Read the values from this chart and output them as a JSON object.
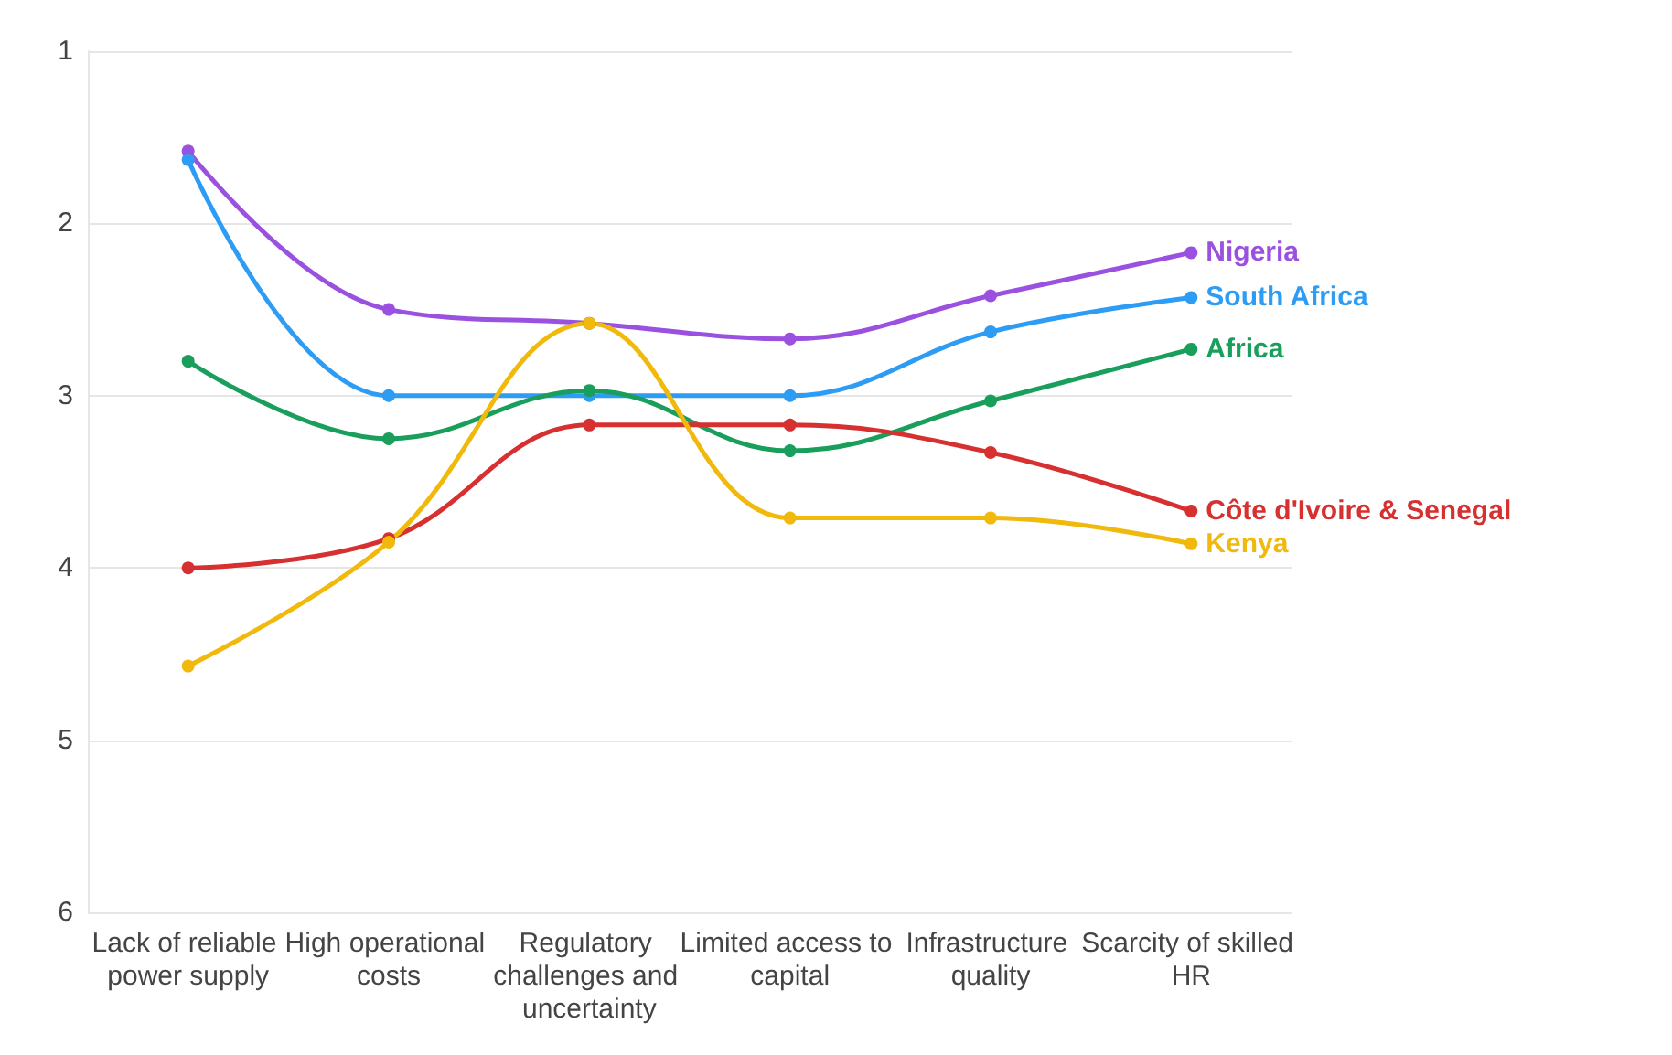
{
  "chart_data": {
    "type": "line",
    "categories": [
      "Lack of reliable power supply",
      "High operational costs",
      "Regulatory challenges and uncertainty",
      "Limited access to capital",
      "Infrastructure quality",
      "Scarcity of skilled HR"
    ],
    "series": [
      {
        "name": "Nigeria",
        "color": "#9b51e0",
        "values": [
          1.58,
          2.5,
          2.58,
          2.67,
          2.42,
          2.17
        ]
      },
      {
        "name": "South Africa",
        "color": "#2d9cf5",
        "values": [
          1.63,
          3.0,
          3.0,
          3.0,
          2.63,
          2.43
        ]
      },
      {
        "name": "Africa",
        "color": "#1a9e5c",
        "values": [
          2.8,
          3.25,
          2.97,
          3.32,
          3.03,
          2.73
        ]
      },
      {
        "name": "Côte d'Ivoire & Senegal",
        "color": "#d63031",
        "values": [
          4.0,
          3.83,
          3.17,
          3.17,
          3.33,
          3.67
        ]
      },
      {
        "name": "Kenya",
        "color": "#f0b90b",
        "values": [
          4.57,
          3.85,
          2.58,
          3.71,
          3.71,
          3.86
        ]
      }
    ],
    "ylim": [
      6,
      1
    ],
    "yticks": [
      1,
      2,
      3,
      4,
      5,
      6
    ],
    "grid": "y",
    "legend": false,
    "marker": "circle",
    "line_style": "solid"
  }
}
